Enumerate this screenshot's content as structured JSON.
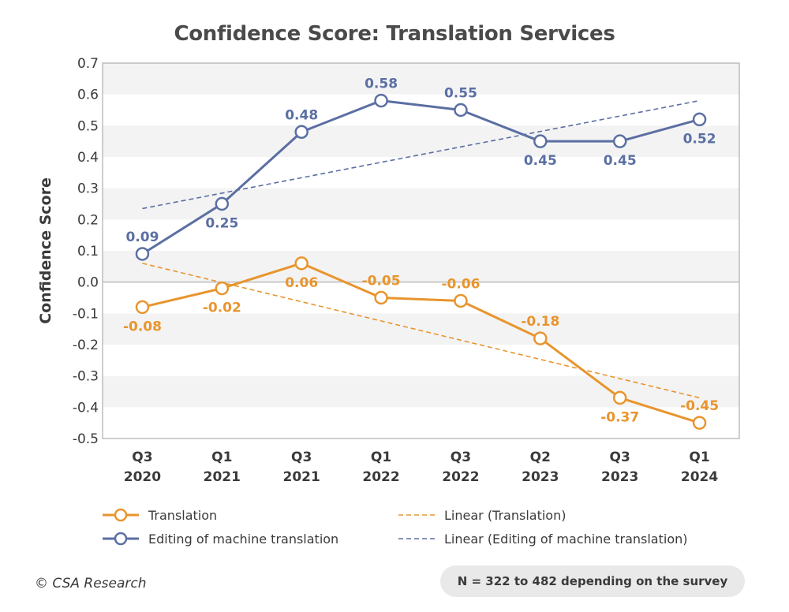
{
  "chart_data": {
    "type": "line",
    "title": "Confidence Score: Translation Services",
    "xlabel": "",
    "ylabel": "Confidence Score",
    "ylim": [
      -0.5,
      0.7
    ],
    "yticks": [
      "0.7",
      "0.6",
      "0.5",
      "0.4",
      "0.3",
      "0.2",
      "0.1",
      "0.0",
      "-0.1",
      "-0.2",
      "-0.3",
      "-0.4",
      "-0.5"
    ],
    "categories": [
      [
        "Q3",
        "2020"
      ],
      [
        "Q1",
        "2021"
      ],
      [
        "Q3",
        "2021"
      ],
      [
        "Q1",
        "2022"
      ],
      [
        "Q3",
        "2022"
      ],
      [
        "Q2",
        "2023"
      ],
      [
        "Q3",
        "2023"
      ],
      [
        "Q1",
        "2024"
      ]
    ],
    "grid": "horizontal bands",
    "legend_position": "bottom",
    "series": [
      {
        "name": "Translation",
        "color": "#e8952e",
        "values": [
          -0.08,
          -0.02,
          0.06,
          -0.05,
          -0.06,
          -0.18,
          -0.37,
          -0.45
        ],
        "labels": [
          "-0.08",
          "-0.02",
          "0.06",
          "-0.05",
          "-0.06",
          "-0.18",
          "-0.37",
          "-0.45"
        ]
      },
      {
        "name": "Editing of machine translation",
        "color": "#5b6fa3",
        "values": [
          0.09,
          0.25,
          0.48,
          0.58,
          0.55,
          0.45,
          0.45,
          0.52
        ],
        "labels": [
          "0.09",
          "0.25",
          "0.48",
          "0.58",
          "0.55",
          "0.45",
          "0.45",
          "0.52"
        ]
      }
    ],
    "trendlines": [
      {
        "name": "Linear (Translation)",
        "color": "#e8952e",
        "start": 0.06,
        "end": -0.37
      },
      {
        "name": "Linear (Editing of machine translation)",
        "color": "#5b6fa3",
        "start": 0.235,
        "end": 0.58
      }
    ]
  },
  "footer": {
    "copyright": "© CSA Research",
    "note": "N = 322 to 482 depending on the survey"
  }
}
